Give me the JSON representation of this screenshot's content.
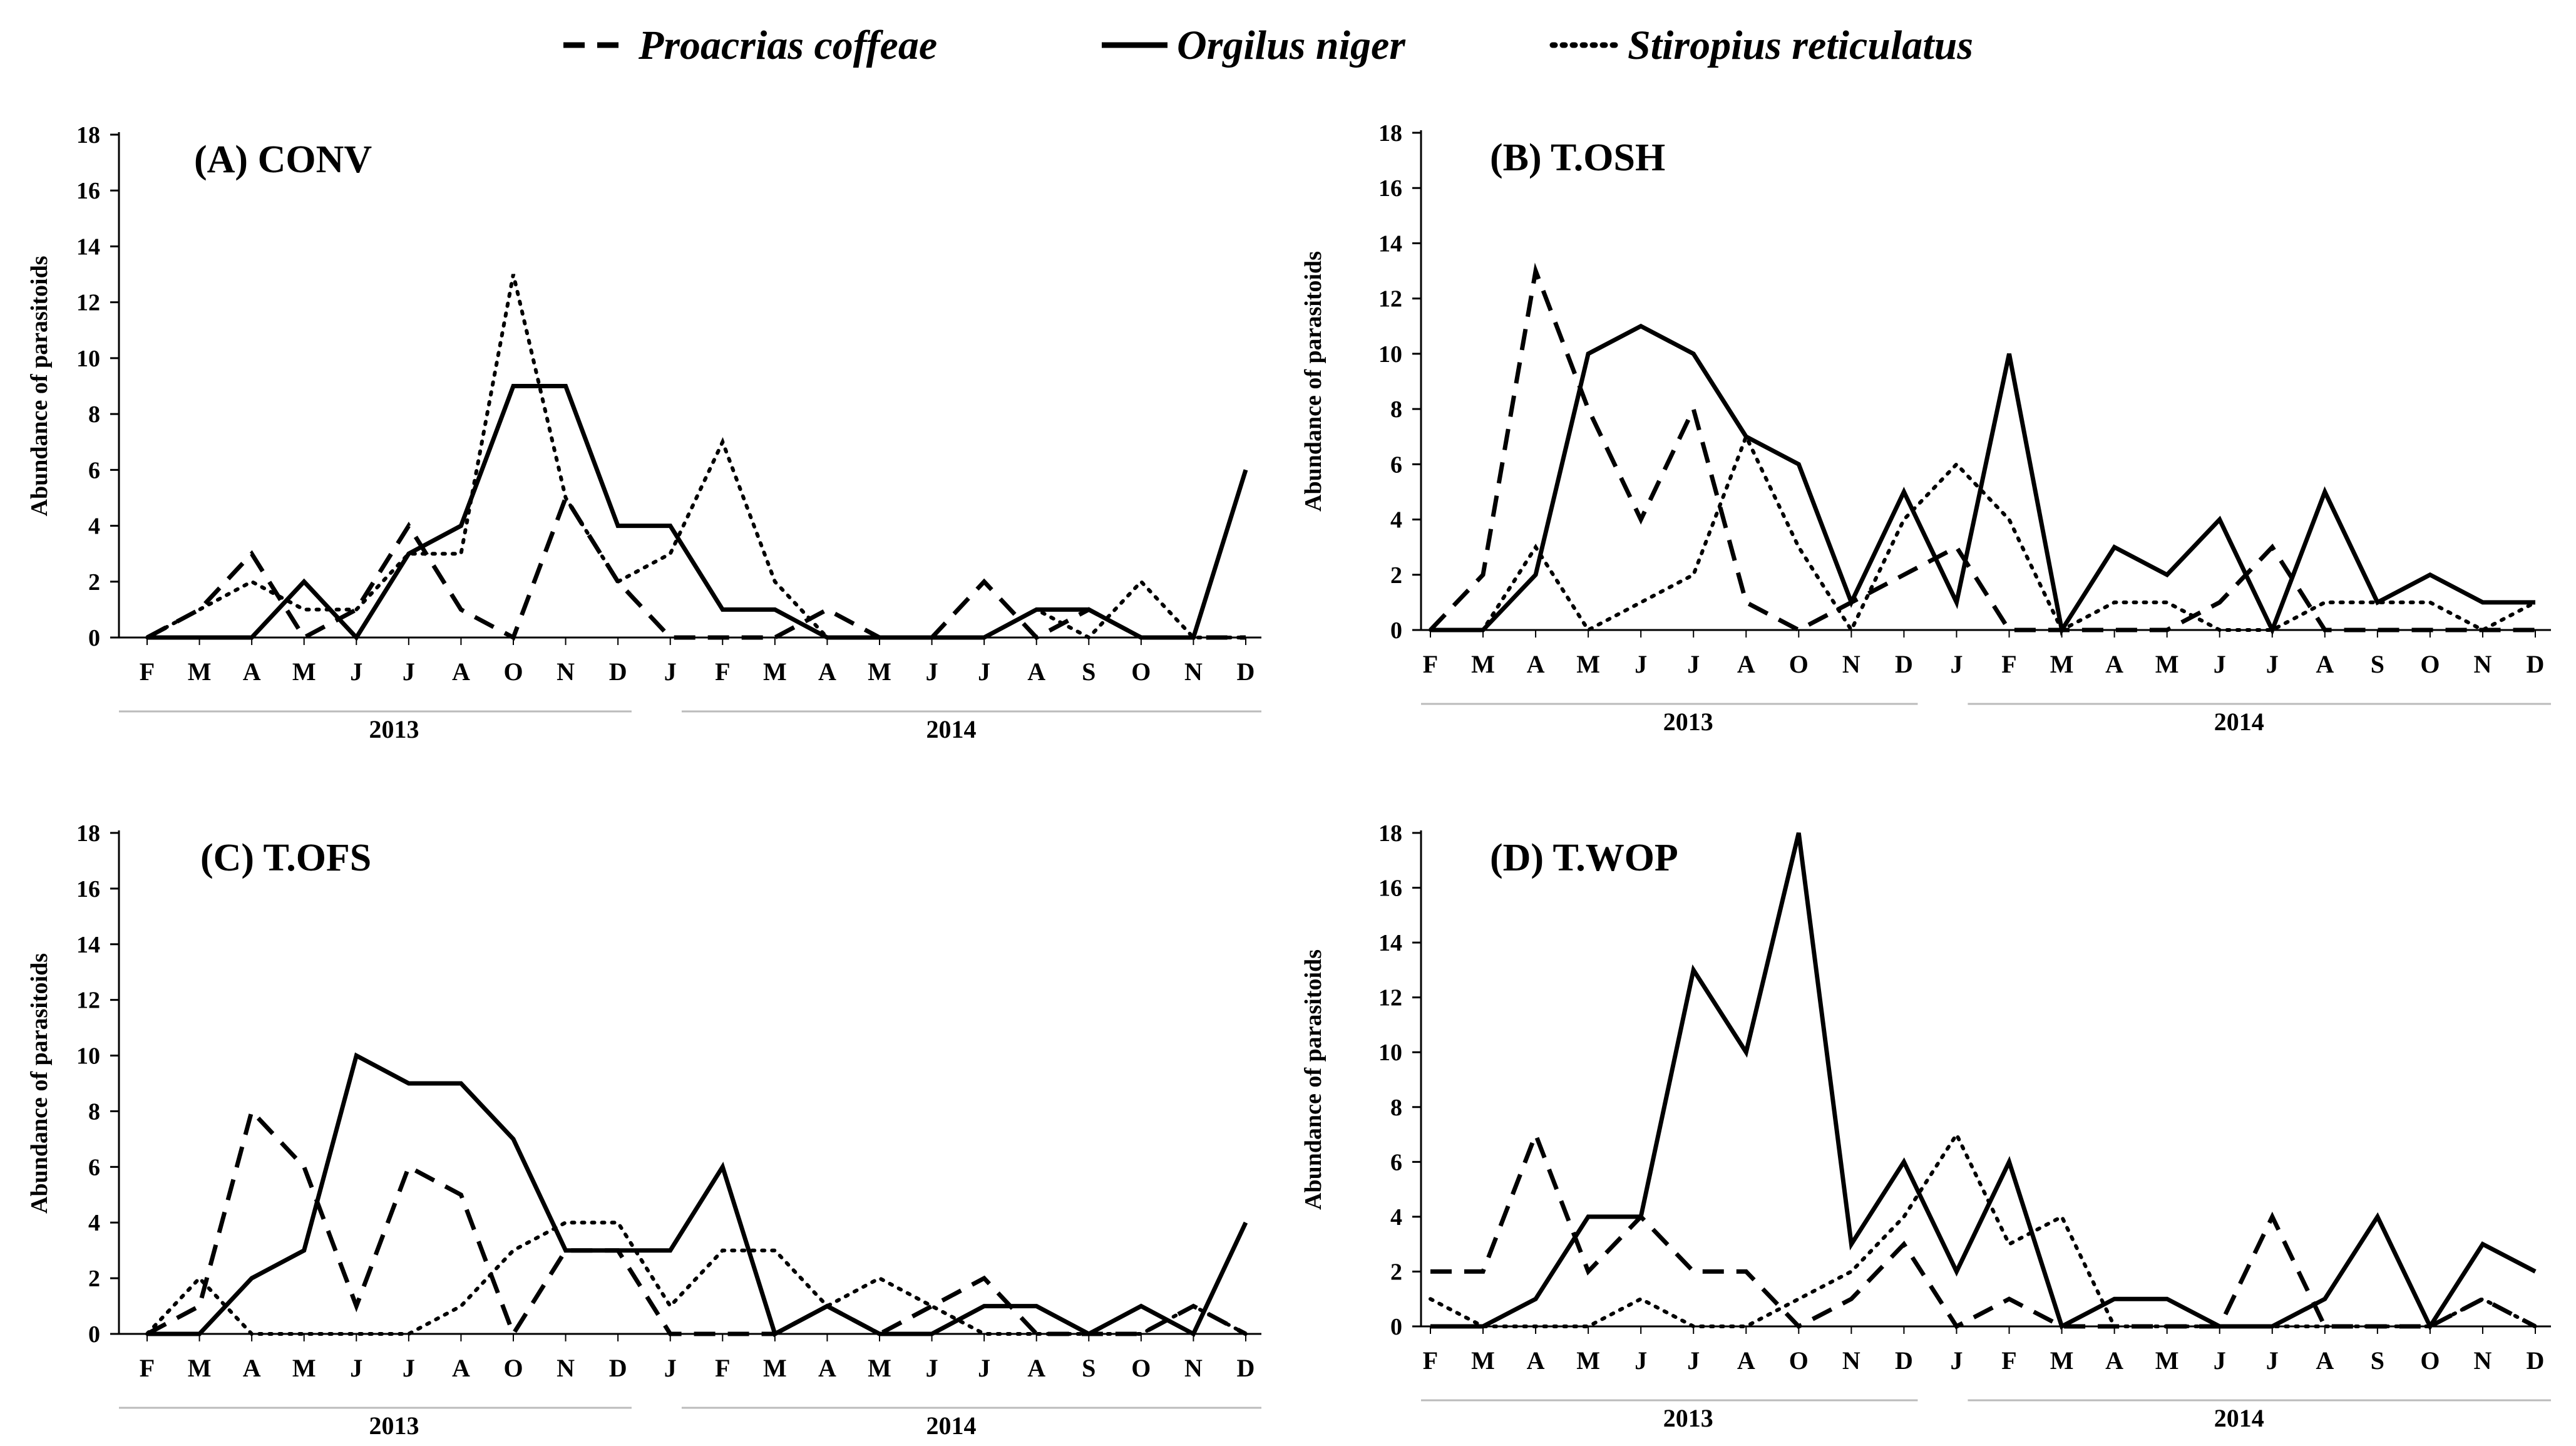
{
  "legend": [
    {
      "name": "Proacrias coffeae",
      "style": "dashed"
    },
    {
      "name": "Orgilus niger",
      "style": "solid"
    },
    {
      "name": "Stiropius reticulatus",
      "style": "dotted"
    }
  ],
  "chart_data": [
    {
      "type": "line",
      "title": "(A) CONV",
      "ylabel": "Abundance of parasitoids",
      "xlabel": "",
      "ylim": [
        0,
        18
      ],
      "yticks": [
        "0",
        "2",
        "4",
        "6",
        "8",
        "10",
        "12",
        "14",
        "16",
        "18"
      ],
      "categories": [
        "F",
        "M",
        "A",
        "M",
        "J",
        "J",
        "A",
        "O",
        "N",
        "D",
        "J",
        "F",
        "M",
        "A",
        "M",
        "J",
        "J",
        "A",
        "S",
        "O",
        "N",
        "D"
      ],
      "years": [
        "2013",
        "2014"
      ],
      "series": [
        {
          "name": "Proacrias coffeae",
          "values": [
            0,
            1,
            3,
            0,
            1,
            4,
            1,
            0,
            5,
            2,
            0,
            0,
            0,
            1,
            0,
            0,
            2,
            0,
            1,
            0,
            0,
            0
          ]
        },
        {
          "name": "Orgilus niger",
          "values": [
            0,
            0,
            0,
            2,
            0,
            3,
            4,
            9,
            9,
            4,
            4,
            1,
            1,
            0,
            0,
            0,
            0,
            1,
            1,
            0,
            0,
            6
          ]
        },
        {
          "name": "Stiropius reticulatus",
          "values": [
            0,
            1,
            2,
            1,
            1,
            3,
            3,
            13,
            5,
            2,
            3,
            7,
            2,
            0,
            0,
            0,
            0,
            1,
            0,
            2,
            0,
            0
          ]
        }
      ]
    },
    {
      "type": "line",
      "title": "(B) T.OSH",
      "ylabel": "Abundance of parasitoids",
      "xlabel": "",
      "ylim": [
        0,
        18
      ],
      "yticks": [
        "0",
        "2",
        "4",
        "6",
        "8",
        "10",
        "12",
        "14",
        "16",
        "18"
      ],
      "categories": [
        "F",
        "M",
        "A",
        "M",
        "J",
        "J",
        "A",
        "O",
        "N",
        "D",
        "J",
        "F",
        "M",
        "A",
        "M",
        "J",
        "J",
        "A",
        "S",
        "O",
        "N",
        "D"
      ],
      "years": [
        "2013",
        "2014"
      ],
      "series": [
        {
          "name": "Proacrias coffeae",
          "values": [
            0,
            2,
            13,
            8,
            4,
            8,
            1,
            0,
            1,
            2,
            3,
            0,
            0,
            0,
            0,
            1,
            3,
            0,
            0,
            0,
            0,
            0
          ]
        },
        {
          "name": "Orgilus niger",
          "values": [
            0,
            0,
            2,
            10,
            11,
            10,
            7,
            6,
            1,
            5,
            1,
            10,
            0,
            3,
            2,
            4,
            0,
            5,
            1,
            2,
            1,
            1
          ]
        },
        {
          "name": "Stiropius reticulatus",
          "values": [
            0,
            0,
            3,
            0,
            1,
            2,
            7,
            3,
            0,
            4,
            6,
            4,
            0,
            1,
            1,
            0,
            0,
            1,
            1,
            1,
            0,
            1
          ]
        }
      ]
    },
    {
      "type": "line",
      "title": "(C) T.OFS",
      "ylabel": "Abundance of parasitoids",
      "xlabel": "",
      "ylim": [
        0,
        18
      ],
      "yticks": [
        "0",
        "2",
        "4",
        "6",
        "8",
        "10",
        "12",
        "14",
        "16",
        "18"
      ],
      "categories": [
        "F",
        "M",
        "A",
        "M",
        "J",
        "J",
        "A",
        "O",
        "N",
        "D",
        "J",
        "F",
        "M",
        "A",
        "M",
        "J",
        "J",
        "A",
        "S",
        "O",
        "N",
        "D"
      ],
      "years": [
        "2013",
        "2014"
      ],
      "series": [
        {
          "name": "Proacrias coffeae",
          "values": [
            0,
            1,
            8,
            6,
            1,
            6,
            5,
            0,
            3,
            3,
            0,
            0,
            0,
            1,
            0,
            1,
            2,
            0,
            0,
            0,
            1,
            0
          ]
        },
        {
          "name": "Orgilus niger",
          "values": [
            0,
            0,
            2,
            3,
            10,
            9,
            9,
            7,
            3,
            3,
            3,
            6,
            0,
            1,
            0,
            0,
            1,
            1,
            0,
            1,
            0,
            4
          ]
        },
        {
          "name": "Stiropius reticulatus",
          "values": [
            0,
            2,
            0,
            0,
            0,
            0,
            1,
            3,
            4,
            4,
            1,
            3,
            3,
            1,
            2,
            1,
            0,
            0,
            0,
            0,
            1,
            0
          ]
        }
      ]
    },
    {
      "type": "line",
      "title": "(D) T.WOP",
      "ylabel": "Abundance of parasitoids",
      "xlabel": "",
      "ylim": [
        0,
        18
      ],
      "yticks": [
        "0",
        "2",
        "4",
        "6",
        "8",
        "10",
        "12",
        "14",
        "16",
        "18"
      ],
      "categories": [
        "F",
        "M",
        "A",
        "M",
        "J",
        "J",
        "A",
        "O",
        "N",
        "D",
        "J",
        "F",
        "M",
        "A",
        "M",
        "J",
        "J",
        "A",
        "S",
        "O",
        "N",
        "D"
      ],
      "years": [
        "2013",
        "2014"
      ],
      "series": [
        {
          "name": "Proacrias coffeae",
          "values": [
            2,
            2,
            7,
            2,
            4,
            2,
            2,
            0,
            1,
            3,
            0,
            1,
            0,
            0,
            0,
            0,
            4,
            0,
            0,
            0,
            1,
            0
          ]
        },
        {
          "name": "Orgilus niger",
          "values": [
            0,
            0,
            1,
            4,
            4,
            13,
            10,
            18,
            3,
            6,
            2,
            6,
            0,
            1,
            1,
            0,
            0,
            1,
            4,
            0,
            3,
            2
          ]
        },
        {
          "name": "Stiropius reticulatus",
          "values": [
            1,
            0,
            0,
            0,
            1,
            0,
            0,
            1,
            2,
            4,
            7,
            3,
            4,
            0,
            0,
            0,
            0,
            0,
            0,
            0,
            1,
            0
          ]
        }
      ]
    }
  ]
}
